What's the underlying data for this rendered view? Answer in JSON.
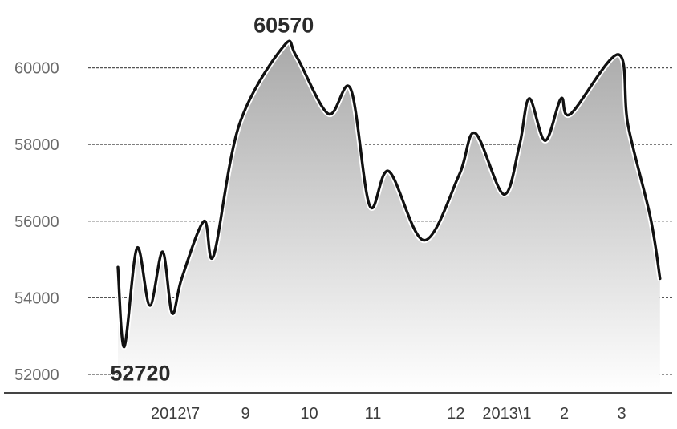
{
  "chart_data": {
    "type": "area",
    "title": "",
    "xlabel": "",
    "ylabel": "",
    "ylim": [
      52000,
      61000
    ],
    "yticks": [
      52000,
      54000,
      56000,
      58000,
      60000
    ],
    "grid": true,
    "legend": "none",
    "x_tick_labels": [
      {
        "label": "2012\\7",
        "x": 0.9
      },
      {
        "label": "9",
        "x": 2.0
      },
      {
        "label": "10",
        "x": 3.0
      },
      {
        "label": "11",
        "x": 4.0
      },
      {
        "label": "12",
        "x": 5.3
      },
      {
        "label": "2013\\1",
        "x": 6.1
      },
      {
        "label": "2",
        "x": 7.0
      },
      {
        "label": "3",
        "x": 7.9
      }
    ],
    "series": [
      {
        "x": [
          0.0,
          0.1,
          0.3,
          0.5,
          0.7,
          0.85,
          1.0,
          1.35,
          1.5,
          1.9,
          2.6,
          2.8,
          3.3,
          3.65,
          3.95,
          4.25,
          4.8,
          5.35,
          5.6,
          6.05,
          6.3,
          6.45,
          6.7,
          6.95,
          7.1,
          7.85,
          8.0,
          8.35,
          8.5
        ],
        "y": [
          54800,
          52720,
          55300,
          53800,
          55200,
          53600,
          54500,
          56000,
          55100,
          58500,
          60570,
          60300,
          58800,
          59450,
          56400,
          57300,
          55500,
          57200,
          58300,
          56700,
          58000,
          59200,
          58100,
          59200,
          58800,
          60350,
          58500,
          56100,
          54500
        ]
      }
    ],
    "annotations": [
      {
        "text": "60570",
        "x": 2.6,
        "y": 60570
      },
      {
        "text": "52720",
        "x": 0.1,
        "y": 52720
      }
    ],
    "colors": {
      "line": "#111111",
      "area_top": "#a9a9a9",
      "area_bottom": "#ffffff",
      "grid": "#555555",
      "axis": "#444444"
    }
  }
}
